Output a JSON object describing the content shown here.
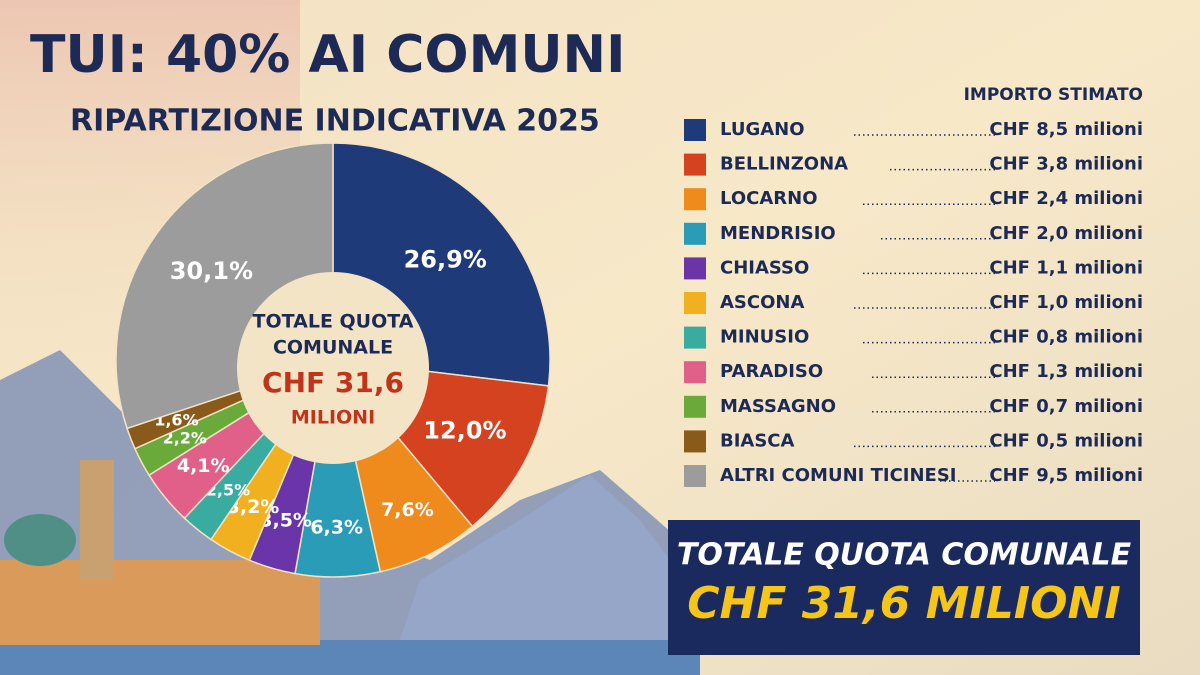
{
  "chart_data": {
    "type": "donut",
    "title": "TUI: 40% AI COMUNI",
    "subtitle": "RIPARTIZIONE INDICATIVA 2025",
    "center_label": [
      "TOTALE QUOTA",
      "COMUNALE",
      "CHF 31,6",
      "MILIONI"
    ],
    "legend_header": "IMPORTO STIMATO",
    "categories": [
      "LUGANO",
      "BELLINZONA",
      "LOCARNO",
      "MENDRISIO",
      "CHIASSO",
      "ASCONA",
      "MINUSIO",
      "PARADISO",
      "MASSAGNO",
      "BIASCA",
      "ALTRI COMUNI TICINESI"
    ],
    "values": [
      26.9,
      12.0,
      7.6,
      6.3,
      3.5,
      3.2,
      2.5,
      4.1,
      2.2,
      1.6,
      30.1
    ],
    "value_labels": [
      "26,9%",
      "12,0%",
      "7,6%",
      "6,3%",
      "3,5%",
      "3,2%",
      "2,5%",
      "4,1%",
      "2,2%",
      "1,6%",
      "30,1%"
    ],
    "amounts": [
      "CHF 8,5 milioni",
      "CHF 3,8 milioni",
      "CHF 2,4 milioni",
      "CHF 2,0 milioni",
      "CHF 1,1 milioni",
      "CHF 1,0 milioni",
      "CHF 0,8 milioni",
      "CHF 1,3 milioni",
      "CHF 0,7 milioni",
      "CHF 0,5 milioni",
      "CHF 9,5 milioni"
    ],
    "colors": [
      "#1f3a78",
      "#d4421f",
      "#ef8a1d",
      "#2a9cb8",
      "#6a35a8",
      "#f0b020",
      "#3aaba0",
      "#e0608a",
      "#6aaa3a",
      "#8a5a1a",
      "#9c9c9c"
    ],
    "total_box": [
      "TOTALE QUOTA COMUNALE",
      "CHF 31,6 MILIONI"
    ]
  }
}
